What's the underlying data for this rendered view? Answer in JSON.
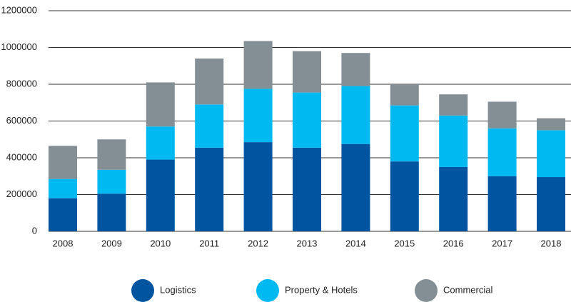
{
  "chart_data": {
    "type": "stacked_bar",
    "categories": [
      "2008",
      "2009",
      "2010",
      "2011",
      "2012",
      "2013",
      "2014",
      "2015",
      "2016",
      "2017",
      "2018"
    ],
    "series": [
      {
        "name": "Logistics",
        "color": "#0054a0",
        "values": [
          180000,
          205000,
          390000,
          455000,
          485000,
          455000,
          475000,
          380000,
          350000,
          300000,
          295000
        ]
      },
      {
        "name": "Property & Hotels",
        "color": "#00b9f1",
        "values": [
          105000,
          130000,
          180000,
          235000,
          290000,
          300000,
          315000,
          305000,
          280000,
          260000,
          255000
        ]
      },
      {
        "name": "Commercial",
        "color": "#848f95",
        "values": [
          180000,
          165000,
          240000,
          250000,
          260000,
          225000,
          180000,
          115000,
          115000,
          145000,
          65000
        ]
      }
    ],
    "ylim": [
      0,
      1200000
    ],
    "yticks": [
      0,
      200000,
      400000,
      600000,
      800000,
      1000000,
      1200000
    ],
    "grid": true,
    "legend": "bottom"
  }
}
